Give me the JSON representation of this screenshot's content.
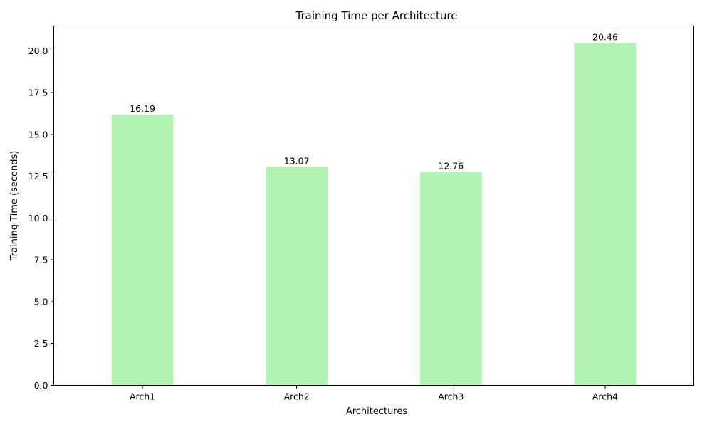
{
  "chart_data": {
    "type": "bar",
    "title": "Training Time per Architecture",
    "xlabel": "Architectures",
    "ylabel": "Training Time (seconds)",
    "categories": [
      "Arch1",
      "Arch2",
      "Arch3",
      "Arch4"
    ],
    "values": [
      16.19,
      13.07,
      12.76,
      20.46
    ],
    "data_labels": [
      "16.19",
      "13.07",
      "12.76",
      "20.46"
    ],
    "ylim": [
      0,
      21.483
    ],
    "yticks": [
      0,
      2.5,
      5,
      7.5,
      10,
      12.5,
      15,
      17.5,
      20
    ],
    "ytick_labels": [
      "0.0",
      "2.5",
      "5.0",
      "7.5",
      "10.0",
      "12.5",
      "15.0",
      "17.5",
      "20.0"
    ],
    "grid": false,
    "legend": "none",
    "bar_color": "#b2f3b2"
  }
}
